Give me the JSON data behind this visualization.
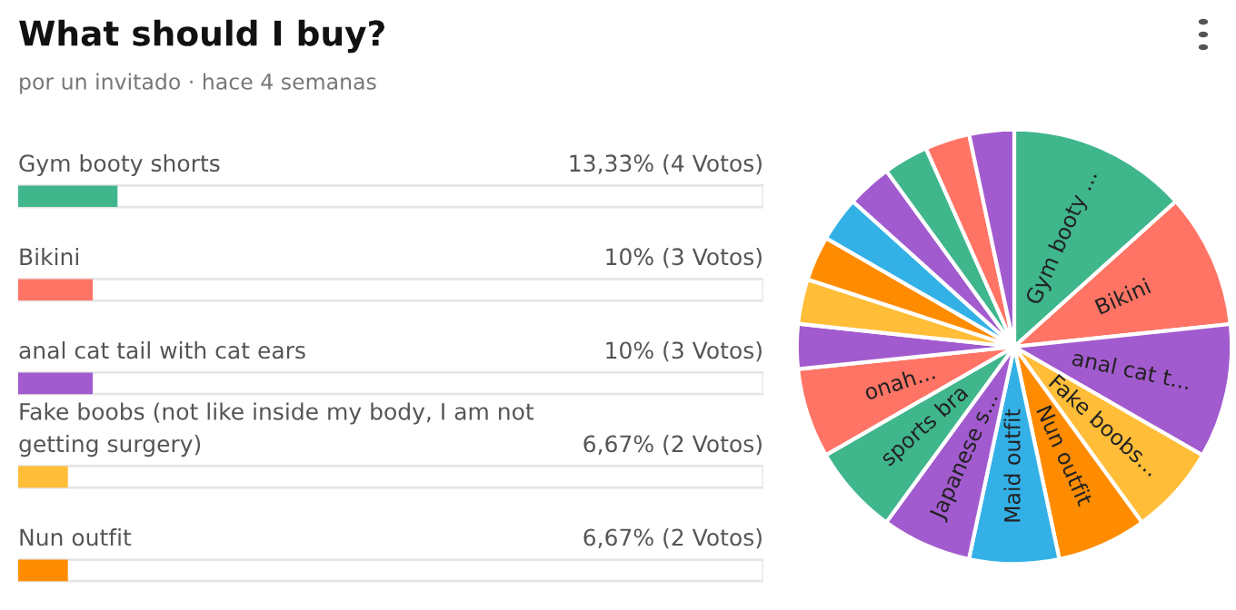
{
  "chart_data": [
    {
      "type": "bar",
      "title": "What should I buy?",
      "subtitle": "por un invitado · hace 4 semanas",
      "orientation": "horizontal",
      "xlim": [
        0,
        100
      ],
      "categories": [
        "Gym booty shorts",
        "Bikini",
        "anal cat tail with cat ears",
        "Fake boobs (not like inside my body, I am not getting surgery)",
        "Nun outfit"
      ],
      "values": [
        13.33,
        10,
        10,
        6.67,
        6.67
      ],
      "value_labels": [
        "13,33% (4 Votos)",
        "10% (3 Votos)",
        "10% (3 Votos)",
        "6,67% (2 Votos)",
        "6,67% (2 Votos)"
      ],
      "colors": [
        "#3fb68b",
        "#ff7465",
        "#a25bcf",
        "#ffbd38",
        "#ff8c00"
      ]
    },
    {
      "type": "pie",
      "categories": [
        "Gym booty ...",
        "Bikini",
        "anal cat t...",
        "Fake boobs...",
        "Nun outfit",
        "Maid outfit",
        "Japanese s...",
        "sports bra",
        "onah...",
        null,
        null,
        null,
        null,
        null,
        null,
        null,
        null
      ],
      "values": [
        13.33,
        10,
        10,
        6.67,
        6.67,
        6.67,
        6.67,
        6.67,
        6.67,
        3.33,
        3.33,
        3.33,
        3.33,
        3.33,
        3.33,
        3.33,
        3.33
      ],
      "colors": [
        "#3fb68b",
        "#ff7465",
        "#a25bcf",
        "#ffbd38",
        "#ff8c00",
        "#33b1e7",
        "#a25bcf",
        "#3fb68b",
        "#ff7465",
        "#a25bcf",
        "#ffbd38",
        "#ff8c00",
        "#33b1e7",
        "#a25bcf",
        "#3fb68b",
        "#ff7465",
        "#a25bcf"
      ]
    }
  ]
}
